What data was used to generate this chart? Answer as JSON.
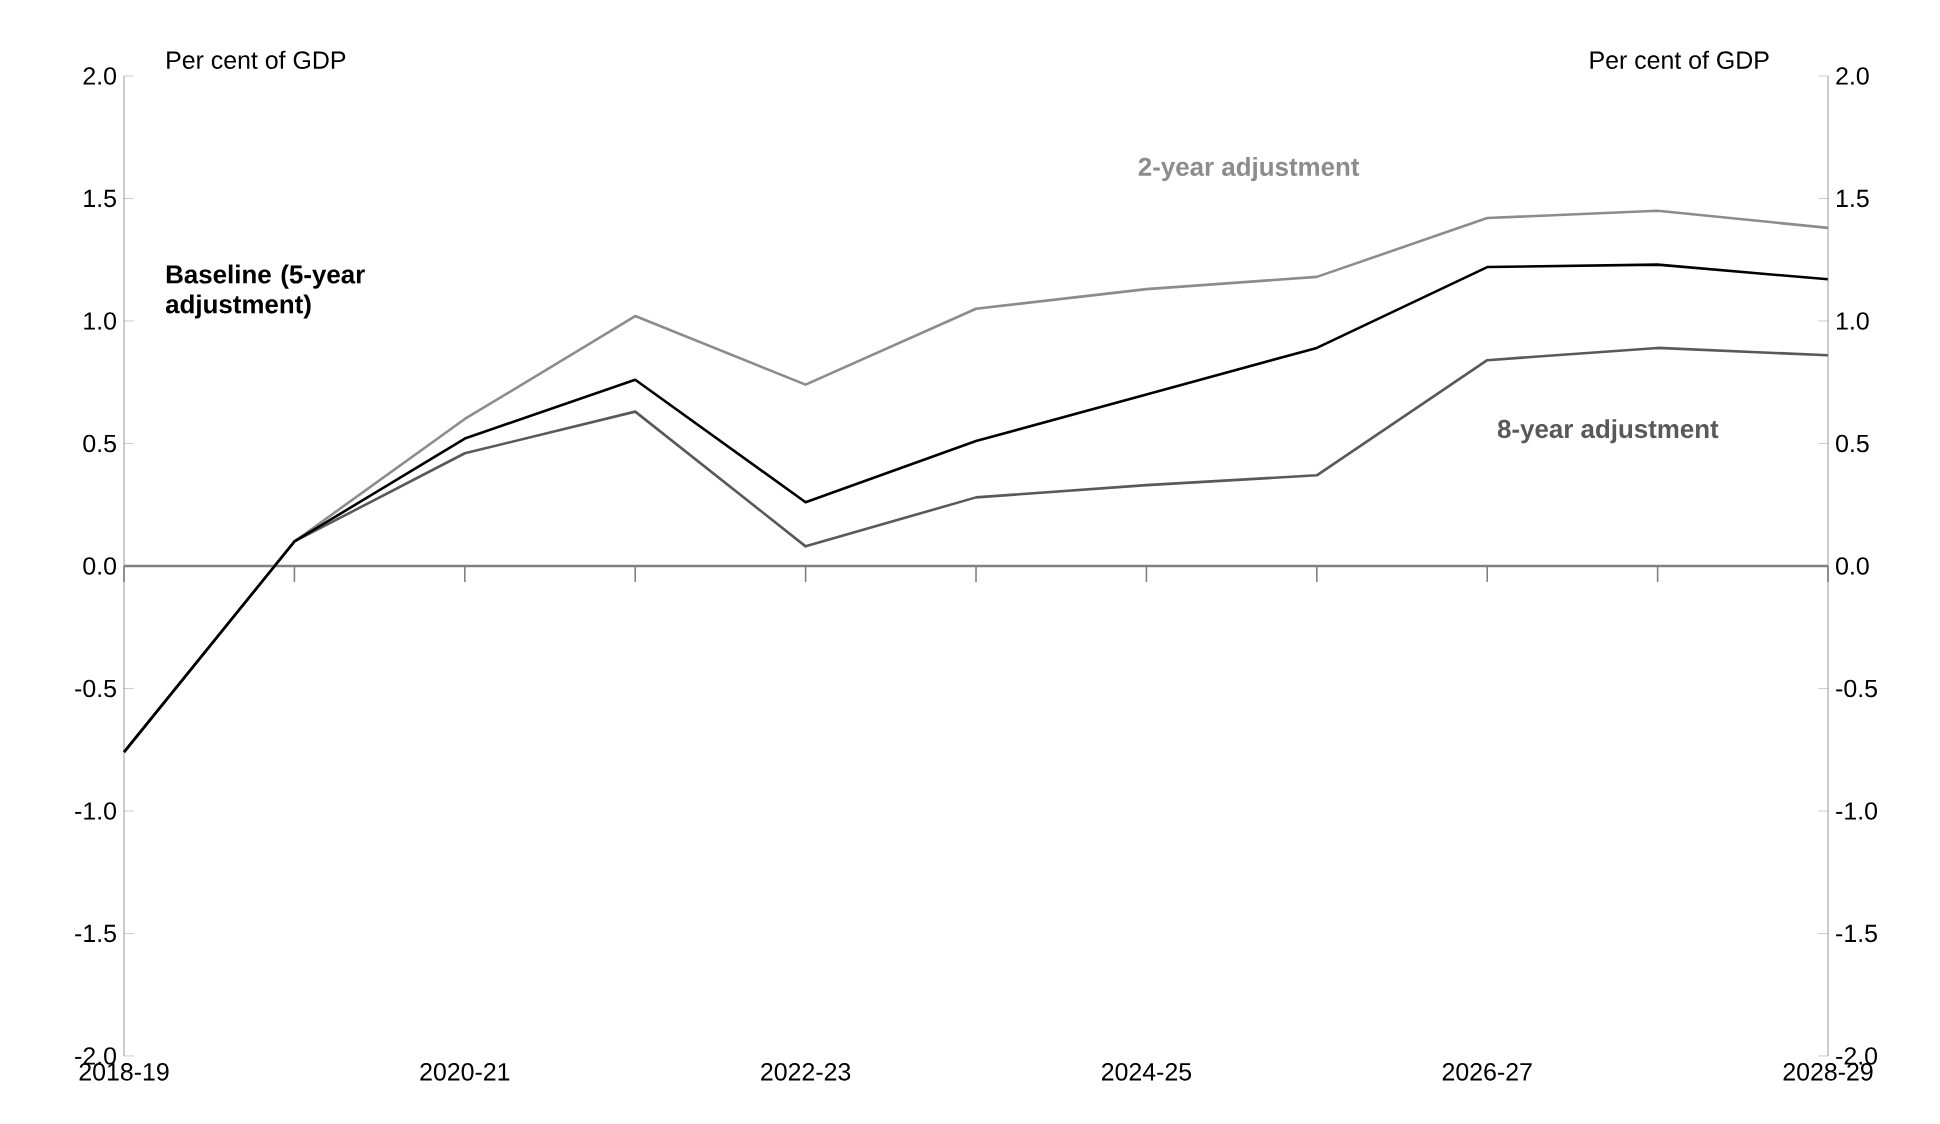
{
  "chart_data": {
    "type": "line",
    "ylabel": "Per cent of GDP",
    "y2label": "Per cent of GDP",
    "categories": [
      "2018-19",
      null,
      "2020-21",
      null,
      "2022-23",
      null,
      "2024-25",
      null,
      "2026-27",
      null,
      "2028-29"
    ],
    "ylim": [
      -2,
      2
    ],
    "yticks": [
      {
        "value": -2,
        "label": "-2.0"
      },
      {
        "value": -1.5,
        "label": "-1.5"
      },
      {
        "value": -1,
        "label": "-1.0"
      },
      {
        "value": -0.5,
        "label": "-0.5"
      },
      {
        "value": 0,
        "label": "0.0"
      },
      {
        "value": 0.5,
        "label": "0.5"
      },
      {
        "value": 1,
        "label": "1.0"
      },
      {
        "value": 1.5,
        "label": "1.5"
      },
      {
        "value": 2,
        "label": "2.0"
      }
    ],
    "y2lim": [
      -2,
      2
    ],
    "y2ticks": [
      {
        "value": -2,
        "label": "-2.0"
      },
      {
        "value": -1.5,
        "label": "-1.5"
      },
      {
        "value": -1,
        "label": "-1.0"
      },
      {
        "value": -0.5,
        "label": "-0.5"
      },
      {
        "value": 0,
        "label": "0.0"
      },
      {
        "value": 0.5,
        "label": "0.5"
      },
      {
        "value": 1,
        "label": "1.0"
      },
      {
        "value": 1.5,
        "label": "1.5"
      },
      {
        "value": 2,
        "label": "2.0"
      }
    ],
    "series": [
      {
        "name": "2-year adjustment",
        "color": "#8c8c8c",
        "values": [
          -0.76,
          0.1,
          0.6,
          1.02,
          0.74,
          1.05,
          1.13,
          1.18,
          1.42,
          1.45,
          1.38
        ]
      },
      {
        "name": "8-year adjustment",
        "color": "#595959",
        "values": [
          -0.76,
          0.1,
          0.46,
          0.63,
          0.08,
          0.28,
          0.33,
          0.37,
          0.84,
          0.89,
          0.86
        ]
      },
      {
        "name": "Baseline (5-year adjustment)",
        "color": "#000000",
        "values": [
          -0.76,
          0.1,
          0.52,
          0.76,
          0.26,
          0.51,
          0.7,
          0.89,
          1.22,
          1.23,
          1.17
        ]
      }
    ],
    "marker": "none",
    "line_style": "solid"
  }
}
